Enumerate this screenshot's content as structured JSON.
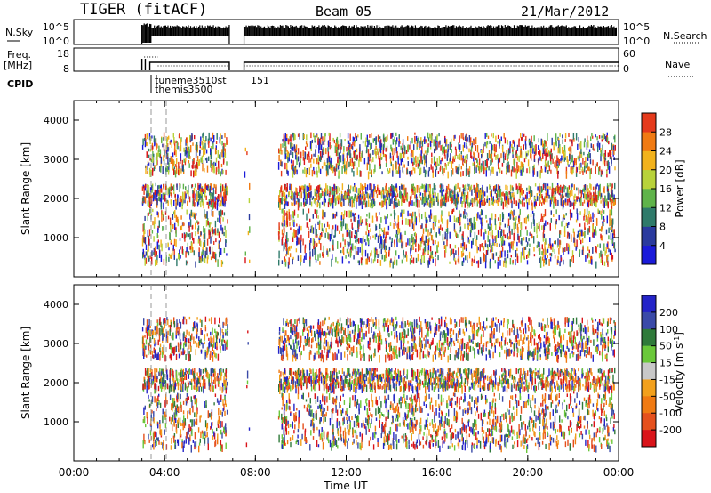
{
  "header": {
    "title": "TIGER (fitACF)",
    "beam": "Beam 05",
    "date": "21/Mar/2012"
  },
  "top_panels": {
    "nsky_label": "N.Sky",
    "nsky_ticks": [
      "10^5",
      "10^0"
    ],
    "nsearch_label": "N.Search",
    "nsearch_ticks": [
      "10^5",
      "10^0"
    ],
    "freq_label_1": "Freq.",
    "freq_label_2": "[MHz]",
    "freq_ticks": [
      "18",
      "8"
    ],
    "nave_label": "Nave",
    "nave_ticks": [
      "60",
      "0"
    ],
    "cpid_label": "CPID",
    "cpid_text_1": "tuneme3510st",
    "cpid_text_2": "themis3500",
    "cpid_value": "151"
  },
  "colors": {
    "power": [
      "#1b1bd9",
      "#2a3a9e",
      "#2f7a6a",
      "#5fb34a",
      "#b8d23a",
      "#f2b21c",
      "#f07a12",
      "#e53a1c",
      "#d9141a"
    ],
    "velocity": [
      "#2424c8",
      "#3a4aa8",
      "#2f7a3a",
      "#6ac83a",
      "#c8c8c8",
      "#f2a01c",
      "#f07a12",
      "#e5501c",
      "#d9141a"
    ],
    "velocity_panel": [
      "#2424c8",
      "#3a4aa8",
      "#2f7a3a",
      "#6ac83a",
      "#f2a01c",
      "#f07a12",
      "#e5501c",
      "#d9141a"
    ]
  },
  "chart_data": [
    {
      "type": "heatmap",
      "panel": "power",
      "ylabel": "Slant Range [km]",
      "y_ticks": [
        1000,
        2000,
        3000,
        4000
      ],
      "ylim": [
        0,
        4500
      ],
      "xlim": [
        "00:00",
        "24:00"
      ],
      "colorbar_label": "Power [dB]",
      "colorbar_ticks": [
        "4",
        "8",
        "12",
        "16",
        "20",
        "24",
        "28"
      ],
      "echo_bands_km": [
        [
          300,
          1650
        ],
        [
          1800,
          2300
        ],
        [
          2600,
          3600
        ]
      ],
      "echo_time_spans": [
        [
          "03:00",
          "06:45"
        ],
        [
          "07:30",
          "07:45"
        ],
        [
          "09:00",
          "23:50"
        ]
      ]
    },
    {
      "type": "heatmap",
      "panel": "velocity",
      "ylabel": "Slant Range [km]",
      "y_ticks": [
        1000,
        2000,
        3000,
        4000
      ],
      "ylim": [
        0,
        4500
      ],
      "xlim": [
        "00:00",
        "24:00"
      ],
      "xlabel": "Time UT",
      "x_ticks": [
        "00:00",
        "04:00",
        "08:00",
        "12:00",
        "16:00",
        "20:00",
        "00:00"
      ],
      "colorbar_label": "Velocity [m s",
      "colorbar_label_sup": "-1",
      "colorbar_label_end": "]",
      "colorbar_ticks": [
        "200",
        "100",
        "50",
        "15",
        "-15",
        "-50",
        "-100",
        "-200"
      ],
      "echo_bands_km": [
        [
          300,
          1650
        ],
        [
          1800,
          2300
        ],
        [
          2600,
          3600
        ]
      ],
      "echo_time_spans": [
        [
          "03:00",
          "06:45"
        ],
        [
          "07:30",
          "07:45"
        ],
        [
          "09:00",
          "23:50"
        ]
      ]
    }
  ]
}
